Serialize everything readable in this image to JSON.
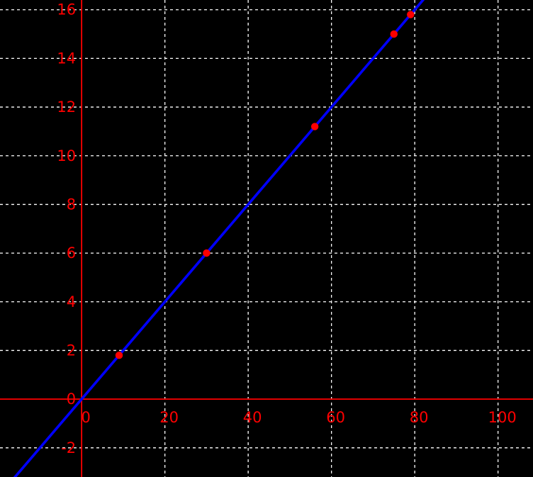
{
  "chart_data": {
    "type": "line",
    "title": "",
    "xlabel": "",
    "ylabel": "",
    "grid": true,
    "legend": "none",
    "bg_color": "#000000",
    "axis_color": "#ff0000",
    "tick_label_color": "#ff0000",
    "grid_color": "#ffffff",
    "line_color": "#0000ff",
    "point_color": "#ff0000",
    "xlim": [
      -19.6,
      108.4
    ],
    "ylim": [
      -3.2,
      16.4
    ],
    "x_ticks": [
      0,
      20,
      40,
      60,
      80,
      100
    ],
    "y_ticks": [
      -2,
      0,
      2,
      4,
      6,
      8,
      10,
      12,
      14,
      16
    ],
    "line_fit": {
      "slope": 0.2,
      "intercept": 0
    },
    "points": {
      "x": [
        9,
        30,
        56,
        75,
        79
      ],
      "y": [
        1.8,
        6.0,
        11.2,
        15.0,
        15.8
      ]
    }
  }
}
